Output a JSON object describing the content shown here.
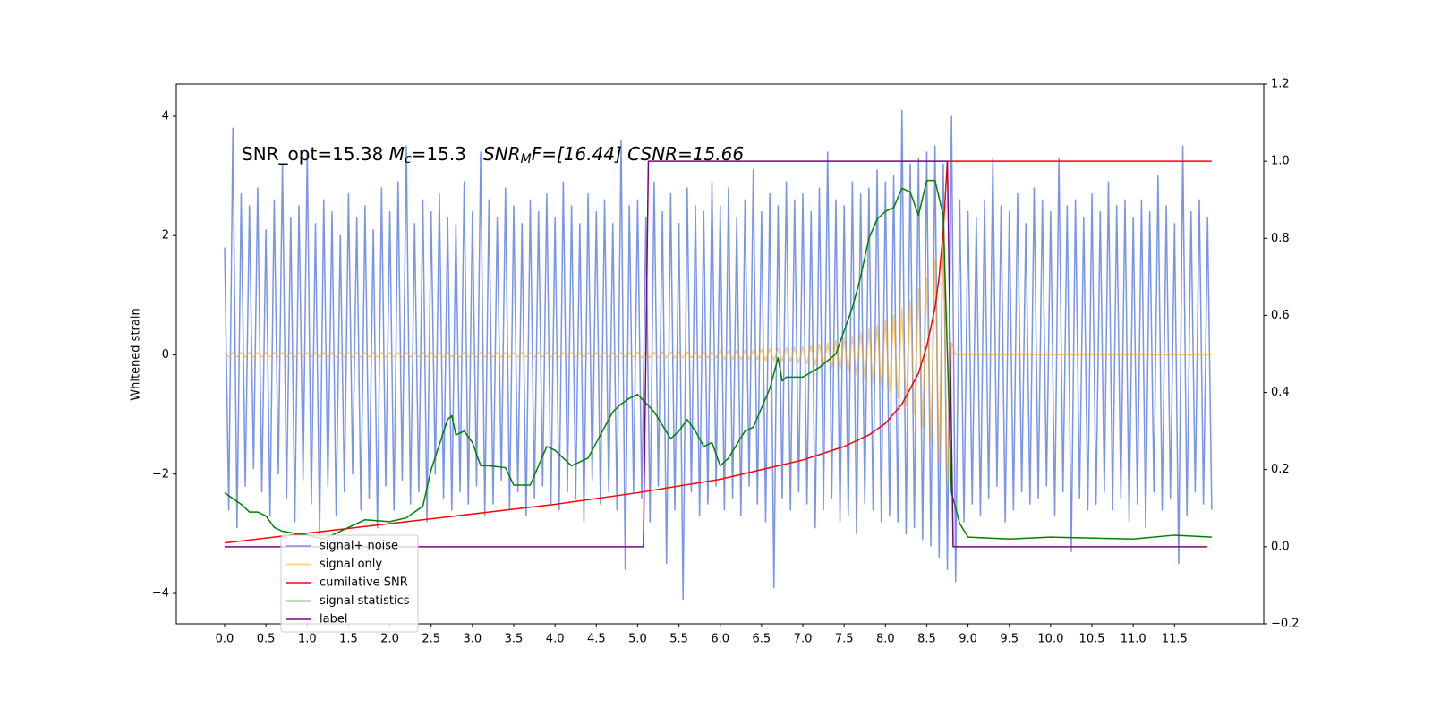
{
  "chart_data": {
    "type": "line",
    "annotation": [
      "SNR_opt=15.38 ",
      "M",
      "c",
      "=15.3   ",
      "SNR",
      "M",
      "F=[16.44] CSNR=15.66"
    ],
    "ylabel": "Whitened strain",
    "xlim": [
      -0.585,
      12.58
    ],
    "ylim": [
      -4.51,
      4.54
    ],
    "y2lim": [
      -0.2,
      1.2
    ],
    "xticks": [
      {
        "value": 0,
        "label": "0.0"
      },
      0.5,
      {
        "value": 1,
        "label": "1.0"
      },
      1.5,
      {
        "value": 2,
        "label": "2.0"
      },
      2.5,
      {
        "value": 3,
        "label": "3.0"
      },
      3.5,
      {
        "value": 4,
        "label": "4.0"
      },
      4.5,
      {
        "value": 5,
        "label": "5.0"
      },
      5.5,
      {
        "value": 6,
        "label": "6.0"
      },
      6.5,
      {
        "value": 7,
        "label": "7.0"
      },
      7.5,
      {
        "value": 8,
        "label": "8.0"
      },
      8.5,
      {
        "value": 9,
        "label": "9.0"
      },
      9.5,
      {
        "value": 10,
        "label": "10.0"
      },
      10.5,
      {
        "value": 11,
        "label": "11.0"
      },
      11.5
    ],
    "yticks": [
      {
        "value": -4,
        "label": "−4"
      },
      {
        "value": -2,
        "label": "−2"
      },
      0,
      2,
      4
    ],
    "y2ticks": [
      {
        "value": -0.2,
        "label": "−0.2"
      },
      {
        "value": 0,
        "label": "0.0"
      },
      0.2,
      0.4,
      0.6,
      0.8,
      {
        "value": 1,
        "label": "1.0"
      },
      1.2
    ],
    "x": [
      0,
      0.05,
      0.1,
      0.15,
      0.2,
      0.25,
      0.3,
      0.35,
      0.4,
      0.45,
      0.5,
      0.55,
      0.6,
      0.65,
      0.7,
      0.75,
      0.8,
      0.85,
      0.9,
      0.95,
      1,
      1.05,
      1.1,
      1.15,
      1.2,
      1.25,
      1.3,
      1.35,
      1.4,
      1.45,
      1.5,
      1.55,
      1.6,
      1.65,
      1.7,
      1.75,
      1.8,
      1.85,
      1.9,
      1.95,
      2,
      2.05,
      2.1,
      2.15,
      2.2,
      2.25,
      2.3,
      2.35,
      2.4,
      2.45,
      2.5,
      2.55,
      2.6,
      2.65,
      2.7,
      2.75,
      2.8,
      2.85,
      2.9,
      2.95,
      3,
      3.05,
      3.1,
      3.15,
      3.2,
      3.25,
      3.3,
      3.35,
      3.4,
      3.45,
      3.5,
      3.55,
      3.6,
      3.65,
      3.7,
      3.75,
      3.8,
      3.85,
      3.9,
      3.95,
      4,
      4.05,
      4.1,
      4.15,
      4.2,
      4.25,
      4.3,
      4.35,
      4.4,
      4.45,
      4.5,
      4.55,
      4.6,
      4.65,
      4.7,
      4.75,
      4.8,
      4.85,
      4.9,
      4.95,
      5,
      5.05,
      5.1,
      5.15,
      5.2,
      5.25,
      5.3,
      5.35,
      5.4,
      5.45,
      5.5,
      5.55,
      5.6,
      5.65,
      5.7,
      5.75,
      5.8,
      5.85,
      5.9,
      5.95,
      6,
      6.05,
      6.1,
      6.15,
      6.2,
      6.25,
      6.3,
      6.35,
      6.4,
      6.45,
      6.5,
      6.55,
      6.6,
      6.65,
      6.7,
      6.75,
      6.8,
      6.85,
      6.9,
      6.95,
      7,
      7.05,
      7.1,
      7.15,
      7.2,
      7.25,
      7.3,
      7.35,
      7.4,
      7.45,
      7.5,
      7.55,
      7.6,
      7.65,
      7.7,
      7.75,
      7.8,
      7.85,
      7.9,
      7.95,
      8,
      8.05,
      8.1,
      8.15,
      8.2,
      8.25,
      8.3,
      8.35,
      8.4,
      8.45,
      8.5,
      8.55,
      8.6,
      8.65,
      8.7,
      8.75,
      8.8,
      8.85,
      8.9,
      8.95,
      9,
      9.05,
      9.1,
      9.15,
      9.2,
      9.25,
      9.3,
      9.35,
      9.4,
      9.45,
      9.5,
      9.55,
      9.6,
      9.65,
      9.7,
      9.75,
      9.8,
      9.85,
      9.9,
      9.95,
      10,
      10.05,
      10.1,
      10.15,
      10.2,
      10.25,
      10.3,
      10.35,
      10.4,
      10.45,
      10.5,
      10.55,
      10.6,
      10.65,
      10.7,
      10.75,
      10.8,
      10.85,
      10.9,
      10.95,
      11,
      11.05,
      11.1,
      11.15,
      11.2,
      11.25,
      11.3,
      11.35,
      11.4,
      11.45,
      11.5,
      11.55,
      11.6,
      11.65,
      11.7,
      11.75,
      11.8,
      11.85,
      11.9,
      11.95
    ],
    "series": [
      {
        "name": "signal+ noise",
        "color": "#7994e8",
        "values": [
          1.8,
          -2.6,
          3.8,
          -2.9,
          2.7,
          -2.2,
          2.5,
          -1.9,
          2.8,
          -2.3,
          2.1,
          -2.7,
          2.6,
          -2.0,
          3.2,
          -2.4,
          2.3,
          -2.8,
          2.5,
          -2.1,
          3.4,
          -2.5,
          2.2,
          -3.0,
          2.6,
          -2.2,
          2.4,
          -2.7,
          2.0,
          -2.3,
          2.7,
          -2.0,
          2.3,
          -2.6,
          2.5,
          -2.4,
          2.1,
          -2.9,
          2.8,
          -2.2,
          2.4,
          -2.6,
          2.9,
          -2.1,
          3.5,
          -2.5,
          2.2,
          -2.3,
          2.6,
          -2.8,
          2.4,
          -2.0,
          2.7,
          -2.4,
          2.3,
          -2.6,
          2.2,
          -2.3,
          2.9,
          -2.5,
          2.4,
          -2.2,
          3.4,
          -2.7,
          2.6,
          -2.5,
          2.3,
          -2.1,
          2.8,
          -2.6,
          2.5,
          -2.3,
          2.2,
          -2.7,
          2.6,
          -2.4,
          2.4,
          -2.2,
          2.7,
          -2.5,
          2.3,
          -2.6,
          2.9,
          -2.3,
          2.5,
          -2.4,
          2.2,
          -2.8,
          2.7,
          -2.1,
          2.4,
          -2.5,
          2.6,
          -2.3,
          2.2,
          -2.6,
          3.6,
          -3.6,
          2.5,
          -2.3,
          2.6,
          -2.4,
          2.3,
          -2.8,
          2.9,
          -2.2,
          2.4,
          -3.5,
          2.7,
          -2.6,
          2.2,
          -4.1,
          2.8,
          -2.3,
          2.5,
          -2.7,
          2.4,
          -2.5,
          2.9,
          -2.2,
          2.5,
          -2.6,
          2.8,
          -2.4,
          2.3,
          -2.7,
          2.6,
          -2.2,
          3.1,
          -2.5,
          2.4,
          -2.8,
          2.7,
          -3.9,
          2.5,
          -2.4,
          2.9,
          -2.6,
          2.6,
          -2.3,
          2.7,
          -2.5,
          2.4,
          -2.9,
          2.8,
          -2.6,
          3.4,
          -2.4,
          2.6,
          -2.8,
          2.5,
          -2.7,
          2.9,
          -3.0,
          2.7,
          -2.5,
          2.8,
          -2.6,
          3.1,
          -2.8,
          2.9,
          -2.7,
          3.0,
          -2.8,
          4.1,
          -3.0,
          3.2,
          -2.9,
          3.3,
          -3.1,
          3.4,
          -3.2,
          3.5,
          -3.4,
          3.2,
          -3.6,
          4.0,
          -3.8,
          2.6,
          -2.8,
          2.4,
          -2.5,
          2.3,
          -2.7,
          2.6,
          -2.4,
          3.3,
          -2.2,
          2.5,
          -2.8,
          2.4,
          -2.6,
          2.7,
          -2.3,
          2.2,
          -2.5,
          2.8,
          -2.4,
          2.6,
          -2.2,
          2.4,
          -2.7,
          3.3,
          -2.3,
          2.5,
          -3.3,
          2.6,
          -2.4,
          2.3,
          -2.6,
          2.7,
          -2.5,
          2.4,
          -2.3,
          2.9,
          -2.6,
          2.5,
          -2.4,
          2.6,
          -2.8,
          2.3,
          -2.5,
          2.6,
          -2.9,
          2.4,
          -2.3,
          3.0,
          -2.6,
          2.5,
          -2.4,
          2.2,
          -3.5,
          3.5,
          -2.7,
          2.4,
          -2.3,
          2.6,
          -2.5,
          2.3,
          -2.6
        ]
      },
      {
        "name": "signal only",
        "color": "#ffa500",
        "values": [
          0.04,
          -0.04,
          0.04,
          -0.04,
          0.04,
          -0.04,
          0.04,
          -0.04,
          0.04,
          -0.04,
          0.04,
          -0.04,
          0.04,
          -0.04,
          0.04,
          -0.04,
          0.04,
          -0.04,
          0.04,
          -0.04,
          0.04,
          -0.04,
          0.04,
          -0.04,
          0.04,
          -0.04,
          0.04,
          -0.04,
          0.04,
          -0.04,
          0.04,
          -0.04,
          0.04,
          -0.04,
          0.04,
          -0.04,
          0.04,
          -0.04,
          0.04,
          -0.04,
          0.04,
          -0.04,
          0.04,
          -0.04,
          0.04,
          -0.04,
          0.04,
          -0.04,
          0.04,
          -0.04,
          0.04,
          -0.04,
          0.04,
          -0.04,
          0.04,
          -0.04,
          0.04,
          -0.04,
          0.04,
          -0.04,
          0.04,
          -0.04,
          0.04,
          -0.04,
          0.04,
          -0.04,
          0.04,
          -0.04,
          0.04,
          -0.04,
          0.04,
          -0.04,
          0.04,
          -0.04,
          0.04,
          -0.04,
          0.04,
          -0.04,
          0.04,
          -0.04,
          0.04,
          -0.04,
          0.04,
          -0.04,
          0.04,
          -0.04,
          0.04,
          -0.04,
          0.04,
          -0.04,
          0.04,
          -0.04,
          0.04,
          -0.04,
          0.04,
          -0.04,
          0.04,
          -0.04,
          0.04,
          -0.04,
          0.05,
          -0.05,
          0.05,
          -0.05,
          0.05,
          -0.05,
          0.05,
          -0.05,
          0.05,
          -0.05,
          0.05,
          -0.05,
          0.05,
          -0.05,
          0.05,
          -0.05,
          0.05,
          -0.05,
          0.05,
          -0.05,
          0.08,
          -0.08,
          0.08,
          -0.08,
          0.08,
          -0.08,
          0.08,
          -0.08,
          0.08,
          -0.08,
          0.1,
          -0.1,
          0.1,
          -0.1,
          0.11,
          -0.11,
          0.12,
          -0.12,
          0.13,
          -0.13,
          0.14,
          -0.15,
          0.16,
          -0.17,
          0.18,
          -0.19,
          0.2,
          -0.22,
          0.24,
          -0.26,
          0.28,
          -0.3,
          0.32,
          -0.35,
          0.38,
          -0.41,
          0.44,
          -0.47,
          0.5,
          -0.54,
          0.58,
          -0.62,
          0.67,
          -0.72,
          0.78,
          -0.85,
          0.92,
          -1.0,
          1.1,
          -1.2,
          1.3,
          -1.45,
          1.6,
          -1.8,
          2.0,
          -2.2,
          0.2,
          0,
          0,
          0,
          0,
          0,
          0,
          0,
          0,
          0,
          0,
          0,
          0,
          0,
          0,
          0,
          0,
          0,
          0,
          0,
          0,
          0,
          0,
          0,
          0,
          0,
          0,
          0,
          0,
          0,
          0,
          0,
          0,
          0,
          0,
          0,
          0,
          0,
          0,
          0,
          0,
          0,
          0,
          0,
          0,
          0,
          0,
          0,
          0,
          0,
          0,
          0,
          0,
          0,
          0,
          0,
          0,
          0,
          0,
          0,
          0,
          0,
          0,
          0
        ]
      },
      {
        "name": "cumilative SNR",
        "color": "#ff0000",
        "axis": "y2",
        "x": [
          0,
          1,
          2,
          3,
          4,
          5,
          6,
          6.5,
          7,
          7.5,
          7.8,
          8,
          8.2,
          8.4,
          8.5,
          8.6,
          8.65,
          8.7,
          8.75,
          8.8,
          11.95
        ],
        "values": [
          0.01,
          0.035,
          0.06,
          0.085,
          0.11,
          0.14,
          0.175,
          0.2,
          0.225,
          0.26,
          0.29,
          0.32,
          0.37,
          0.45,
          0.52,
          0.62,
          0.7,
          0.82,
          1.0,
          1.0,
          1.0
        ]
      },
      {
        "name": "signal statistics",
        "color": "#008000",
        "axis": "y2",
        "x": [
          0,
          0.2,
          0.3,
          0.4,
          0.5,
          0.6,
          0.7,
          1,
          1.2,
          1.5,
          1.7,
          2,
          2.2,
          2.4,
          2.5,
          2.7,
          2.75,
          2.8,
          2.9,
          3,
          3.1,
          3.2,
          3.4,
          3.5,
          3.7,
          3.9,
          4,
          4.2,
          4.4,
          4.5,
          4.7,
          4.8,
          4.9,
          5,
          5.2,
          5.4,
          5.5,
          5.6,
          5.7,
          5.8,
          5.9,
          6,
          6.1,
          6.3,
          6.4,
          6.6,
          6.7,
          6.75,
          6.8,
          7,
          7.2,
          7.4,
          7.6,
          7.7,
          7.8,
          7.9,
          8,
          8.1,
          8.2,
          8.3,
          8.4,
          8.5,
          8.6,
          8.7,
          8.8,
          8.9,
          9,
          9.5,
          10,
          11,
          11.5,
          11.95
        ],
        "values": [
          0.14,
          0.11,
          0.09,
          0.09,
          0.08,
          0.05,
          0.04,
          0.03,
          0.02,
          0.05,
          0.07,
          0.065,
          0.075,
          0.105,
          0.2,
          0.33,
          0.34,
          0.29,
          0.3,
          0.27,
          0.21,
          0.21,
          0.205,
          0.16,
          0.16,
          0.26,
          0.25,
          0.21,
          0.23,
          0.27,
          0.35,
          0.37,
          0.385,
          0.395,
          0.35,
          0.28,
          0.3,
          0.33,
          0.3,
          0.26,
          0.27,
          0.21,
          0.23,
          0.3,
          0.31,
          0.41,
          0.49,
          0.43,
          0.44,
          0.44,
          0.465,
          0.5,
          0.62,
          0.7,
          0.8,
          0.85,
          0.87,
          0.88,
          0.93,
          0.92,
          0.86,
          0.95,
          0.95,
          0.86,
          0.14,
          0.06,
          0.025,
          0.02,
          0.025,
          0.02,
          0.03,
          0.025
        ]
      },
      {
        "name": "label",
        "color": "#800080",
        "axis": "y2",
        "x": [
          0,
          5.07,
          5.13,
          8.75,
          8.82,
          11.9
        ],
        "values": [
          0,
          0,
          1,
          1,
          0,
          0
        ]
      }
    ]
  }
}
